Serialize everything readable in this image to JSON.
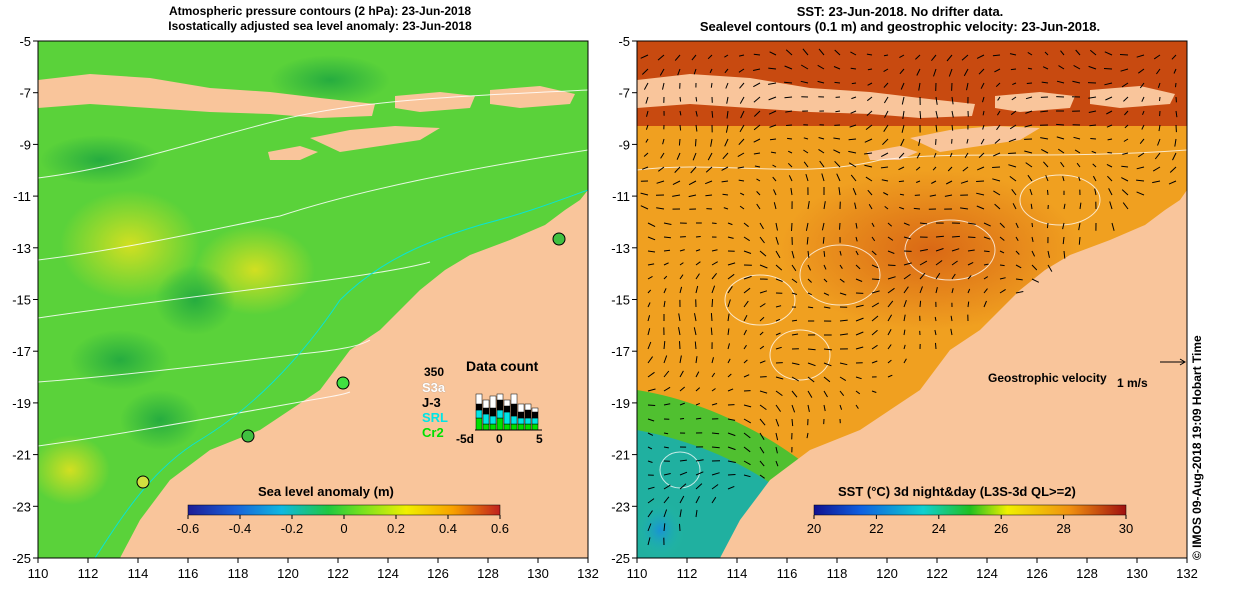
{
  "left_panel": {
    "title_line1": "Atmospheric pressure contours (2 hPa): 23-Jun-2018",
    "title_line2": "Isostatically adjusted sea level anomaly: 23-Jun-2018",
    "colorbar_label": "Sea level anomaly (m)",
    "colorbar_ticks": [
      "-0.6",
      "-0.4",
      "-0.2",
      "0",
      "0.2",
      "0.4",
      "0.6"
    ],
    "colors": {
      "land": "#f9c59b",
      "ocean_base": "#5ad23a"
    },
    "data_count": {
      "title": "Data count",
      "max_label": "350",
      "xticks": [
        "-5d",
        "0",
        "5"
      ],
      "legend": [
        {
          "label": "S3a",
          "color": "#ffffff"
        },
        {
          "label": "J-3",
          "color": "#000000"
        },
        {
          "label": "SRL",
          "color": "#00e5e5"
        },
        {
          "label": "Cr2",
          "color": "#00e000"
        }
      ]
    }
  },
  "right_panel": {
    "title_line1": "SST: 23-Jun-2018. No drifter data.",
    "title_line2": "Sealevel contours (0.1 m) and geostrophic velocity: 23-Jun-2018.",
    "velocity_label": "Geostrophic velocity",
    "velocity_scale": "1 m/s",
    "colorbar_label": "SST (°C) 3d night&day (L3S-3d QL>=2)",
    "colorbar_ticks": [
      "20",
      "22",
      "24",
      "26",
      "28",
      "30"
    ],
    "colors": {
      "land": "#f9c59b",
      "ocean_base": "#f0a020"
    }
  },
  "axes": {
    "x_ticks": [
      "110",
      "112",
      "114",
      "116",
      "118",
      "120",
      "122",
      "124",
      "126",
      "128",
      "130",
      "132"
    ],
    "y_ticks": [
      "-5",
      "-7",
      "-9",
      "-11",
      "-13",
      "-15",
      "-17",
      "-19",
      "-21",
      "-23",
      "-25"
    ]
  },
  "credit": "©  IMOS 09-Aug-2018 19:09 Hobart Time"
}
